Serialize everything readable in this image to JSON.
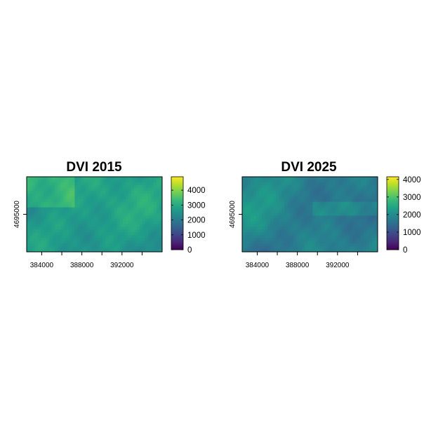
{
  "chart_data": [
    {
      "type": "heatmap",
      "title": "DVI 2015",
      "x_ticks": [
        384000,
        388000,
        392000
      ],
      "x_tick_labels": [
        "384000",
        "388000",
        "392000"
      ],
      "y_ticks": [
        4695000
      ],
      "y_tick_labels": [
        "4695000"
      ],
      "xlim": [
        382500,
        396000
      ],
      "ylim": [
        4692500,
        4697500
      ],
      "colorbar": {
        "palette": "viridis",
        "range": [
          0,
          4900
        ],
        "ticks": [
          0,
          1000,
          2000,
          3000,
          4000
        ],
        "tick_labels": [
          "0",
          "1000",
          "2000",
          "3000",
          "4000"
        ]
      },
      "legend_position": "right"
    },
    {
      "type": "heatmap",
      "title": "DVI 2025",
      "x_ticks": [
        384000,
        388000,
        392000
      ],
      "x_tick_labels": [
        "384000",
        "388000",
        "392000"
      ],
      "y_ticks": [
        4695000
      ],
      "y_tick_labels": [
        "4695000"
      ],
      "xlim": [
        382500,
        396000
      ],
      "ylim": [
        4692500,
        4697500
      ],
      "colorbar": {
        "palette": "viridis",
        "range": [
          0,
          4150
        ],
        "ticks": [
          0,
          1000,
          2000,
          3000,
          4000
        ],
        "tick_labels": [
          "0",
          "1000",
          "2000",
          "3000",
          "4000"
        ]
      },
      "legend_position": "right"
    }
  ],
  "colors": {
    "viridis": [
      "#440154",
      "#482878",
      "#3e4989",
      "#31688e",
      "#26828e",
      "#1f9e89",
      "#35b779",
      "#6ece58",
      "#b5de2b",
      "#fde725"
    ]
  }
}
